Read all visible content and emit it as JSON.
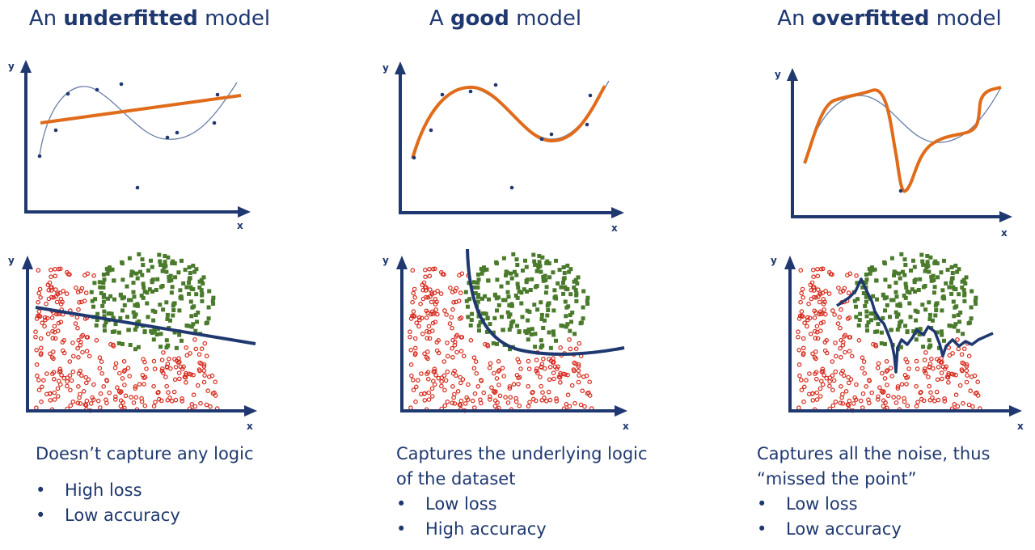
{
  "colors": {
    "axis": "#1f3870",
    "fit_curve": "#e06c1b",
    "true_curve": "#6a7fa8",
    "points": "#1f3870",
    "class_red": "#d62a1d",
    "class_green": "#4a7a2c",
    "boundary": "#1f3870"
  },
  "axis_labels": {
    "x": "x",
    "y": "y"
  },
  "panels": [
    {
      "title_prefix": "An ",
      "title_bold": "underfitted",
      "title_suffix": " model",
      "description": "Doesn’t capture any logic",
      "bullets": [
        "High loss",
        "Low accuracy"
      ],
      "regression_type": "linear",
      "classification_boundary": "straight line"
    },
    {
      "title_prefix": "A ",
      "title_bold": "good",
      "title_suffix": " model",
      "description": "Captures the underlying logic\nof the dataset",
      "bullets": [
        "Low loss",
        "High accuracy"
      ],
      "regression_type": "smooth curve",
      "classification_boundary": "smooth curve"
    },
    {
      "title_prefix": "An ",
      "title_bold": "overfitted",
      "title_suffix": " model",
      "description": "Captures all the noise, thus\n“missed the point”",
      "bullets": [
        "Low loss",
        "Low accuracy"
      ],
      "regression_type": "wiggly curve",
      "classification_boundary": "jagged curve"
    }
  ]
}
